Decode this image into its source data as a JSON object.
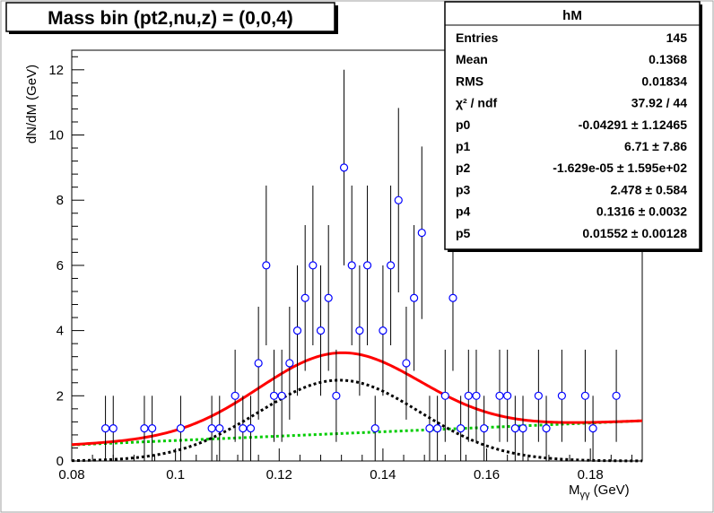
{
  "canvas_title": "Mass bin (pt2,nu,z) = (0,0,4)",
  "stats_box": {
    "title": "hM",
    "rows": [
      {
        "label": "Entries",
        "value": "145"
      },
      {
        "label": "Mean",
        "value": "0.1368"
      },
      {
        "label": "RMS",
        "value": "0.01834"
      },
      {
        "label": "χ² / ndf",
        "value": "37.92 / 44"
      },
      {
        "label": "p0",
        "value": "-0.04291 ± 1.12465"
      },
      {
        "label": "p1",
        "value": "6.71 ± 7.86"
      },
      {
        "label": "p2",
        "value": "-1.629e-05 ± 1.595e+02"
      },
      {
        "label": "p3",
        "value": "2.478 ± 0.584"
      },
      {
        "label": "p4",
        "value": "0.1316 ± 0.0032"
      },
      {
        "label": "p5",
        "value": "0.01552 ± 0.00128"
      }
    ]
  },
  "chart_data": {
    "type": "scatter",
    "title": "Mass bin (pt2,nu,z) = (0,0,4)",
    "xlabel": "M_γγ (GeV)",
    "ylabel": "dN/dM (GeV)",
    "xlim": [
      0.08,
      0.19
    ],
    "ylim": [
      0,
      12.6
    ],
    "x_ticks": [
      0.08,
      0.1,
      0.12,
      0.14,
      0.16,
      0.18
    ],
    "x_tick_labels": [
      "0.08",
      "0.1",
      "0.12",
      "0.14",
      "0.16",
      "0.18"
    ],
    "y_ticks": [
      0,
      2,
      4,
      6,
      8,
      10,
      12
    ],
    "y_tick_labels": [
      "0",
      "2",
      "4",
      "6",
      "8",
      "10",
      "12"
    ],
    "grid": false,
    "legend": "none",
    "colors": {
      "points": "#0000ff",
      "errors": "#000000",
      "total_fit": "#ff0000",
      "signal": "#000000",
      "background": "#00cc00"
    },
    "points": [
      {
        "x": 0.0865,
        "y": 1
      },
      {
        "x": 0.088,
        "y": 1
      },
      {
        "x": 0.094,
        "y": 1
      },
      {
        "x": 0.0955,
        "y": 1
      },
      {
        "x": 0.101,
        "y": 1
      },
      {
        "x": 0.107,
        "y": 1
      },
      {
        "x": 0.1085,
        "y": 1
      },
      {
        "x": 0.1115,
        "y": 2
      },
      {
        "x": 0.113,
        "y": 1
      },
      {
        "x": 0.1145,
        "y": 1
      },
      {
        "x": 0.116,
        "y": 3
      },
      {
        "x": 0.1175,
        "y": 6
      },
      {
        "x": 0.119,
        "y": 2
      },
      {
        "x": 0.1205,
        "y": 2
      },
      {
        "x": 0.122,
        "y": 3
      },
      {
        "x": 0.1235,
        "y": 4
      },
      {
        "x": 0.125,
        "y": 5
      },
      {
        "x": 0.1265,
        "y": 6
      },
      {
        "x": 0.128,
        "y": 4
      },
      {
        "x": 0.1295,
        "y": 5
      },
      {
        "x": 0.131,
        "y": 2
      },
      {
        "x": 0.1325,
        "y": 9
      },
      {
        "x": 0.134,
        "y": 6
      },
      {
        "x": 0.1355,
        "y": 4
      },
      {
        "x": 0.137,
        "y": 6
      },
      {
        "x": 0.1385,
        "y": 1
      },
      {
        "x": 0.14,
        "y": 4
      },
      {
        "x": 0.1415,
        "y": 6
      },
      {
        "x": 0.143,
        "y": 8
      },
      {
        "x": 0.1445,
        "y": 3
      },
      {
        "x": 0.146,
        "y": 5
      },
      {
        "x": 0.1475,
        "y": 7
      },
      {
        "x": 0.149,
        "y": 1
      },
      {
        "x": 0.1505,
        "y": 1
      },
      {
        "x": 0.152,
        "y": 2
      },
      {
        "x": 0.1535,
        "y": 5
      },
      {
        "x": 0.155,
        "y": 1
      },
      {
        "x": 0.1565,
        "y": 2
      },
      {
        "x": 0.158,
        "y": 2
      },
      {
        "x": 0.1595,
        "y": 1
      },
      {
        "x": 0.1625,
        "y": 2
      },
      {
        "x": 0.164,
        "y": 2
      },
      {
        "x": 0.1655,
        "y": 1
      },
      {
        "x": 0.167,
        "y": 1
      },
      {
        "x": 0.17,
        "y": 2
      },
      {
        "x": 0.1715,
        "y": 1
      },
      {
        "x": 0.1745,
        "y": 2
      },
      {
        "x": 0.179,
        "y": 2
      },
      {
        "x": 0.1805,
        "y": 1
      },
      {
        "x": 0.185,
        "y": 2
      }
    ],
    "fit_params": {
      "p0": -0.04291,
      "p1": 6.71,
      "p2": -1.629e-05,
      "p3": 2.478,
      "p4": 0.1316,
      "p5": 0.01552
    },
    "series": [
      {
        "style": "solid",
        "color": "#ff0000",
        "formula": "background + signal"
      },
      {
        "style": "dotted",
        "color": "#000000",
        "formula": "p3 * exp(-0.5*((x-p4)/p5)^2)"
      },
      {
        "style": "dotted",
        "color": "#00cc00",
        "formula": "p0 + p1*x + p2*x^2"
      }
    ]
  }
}
